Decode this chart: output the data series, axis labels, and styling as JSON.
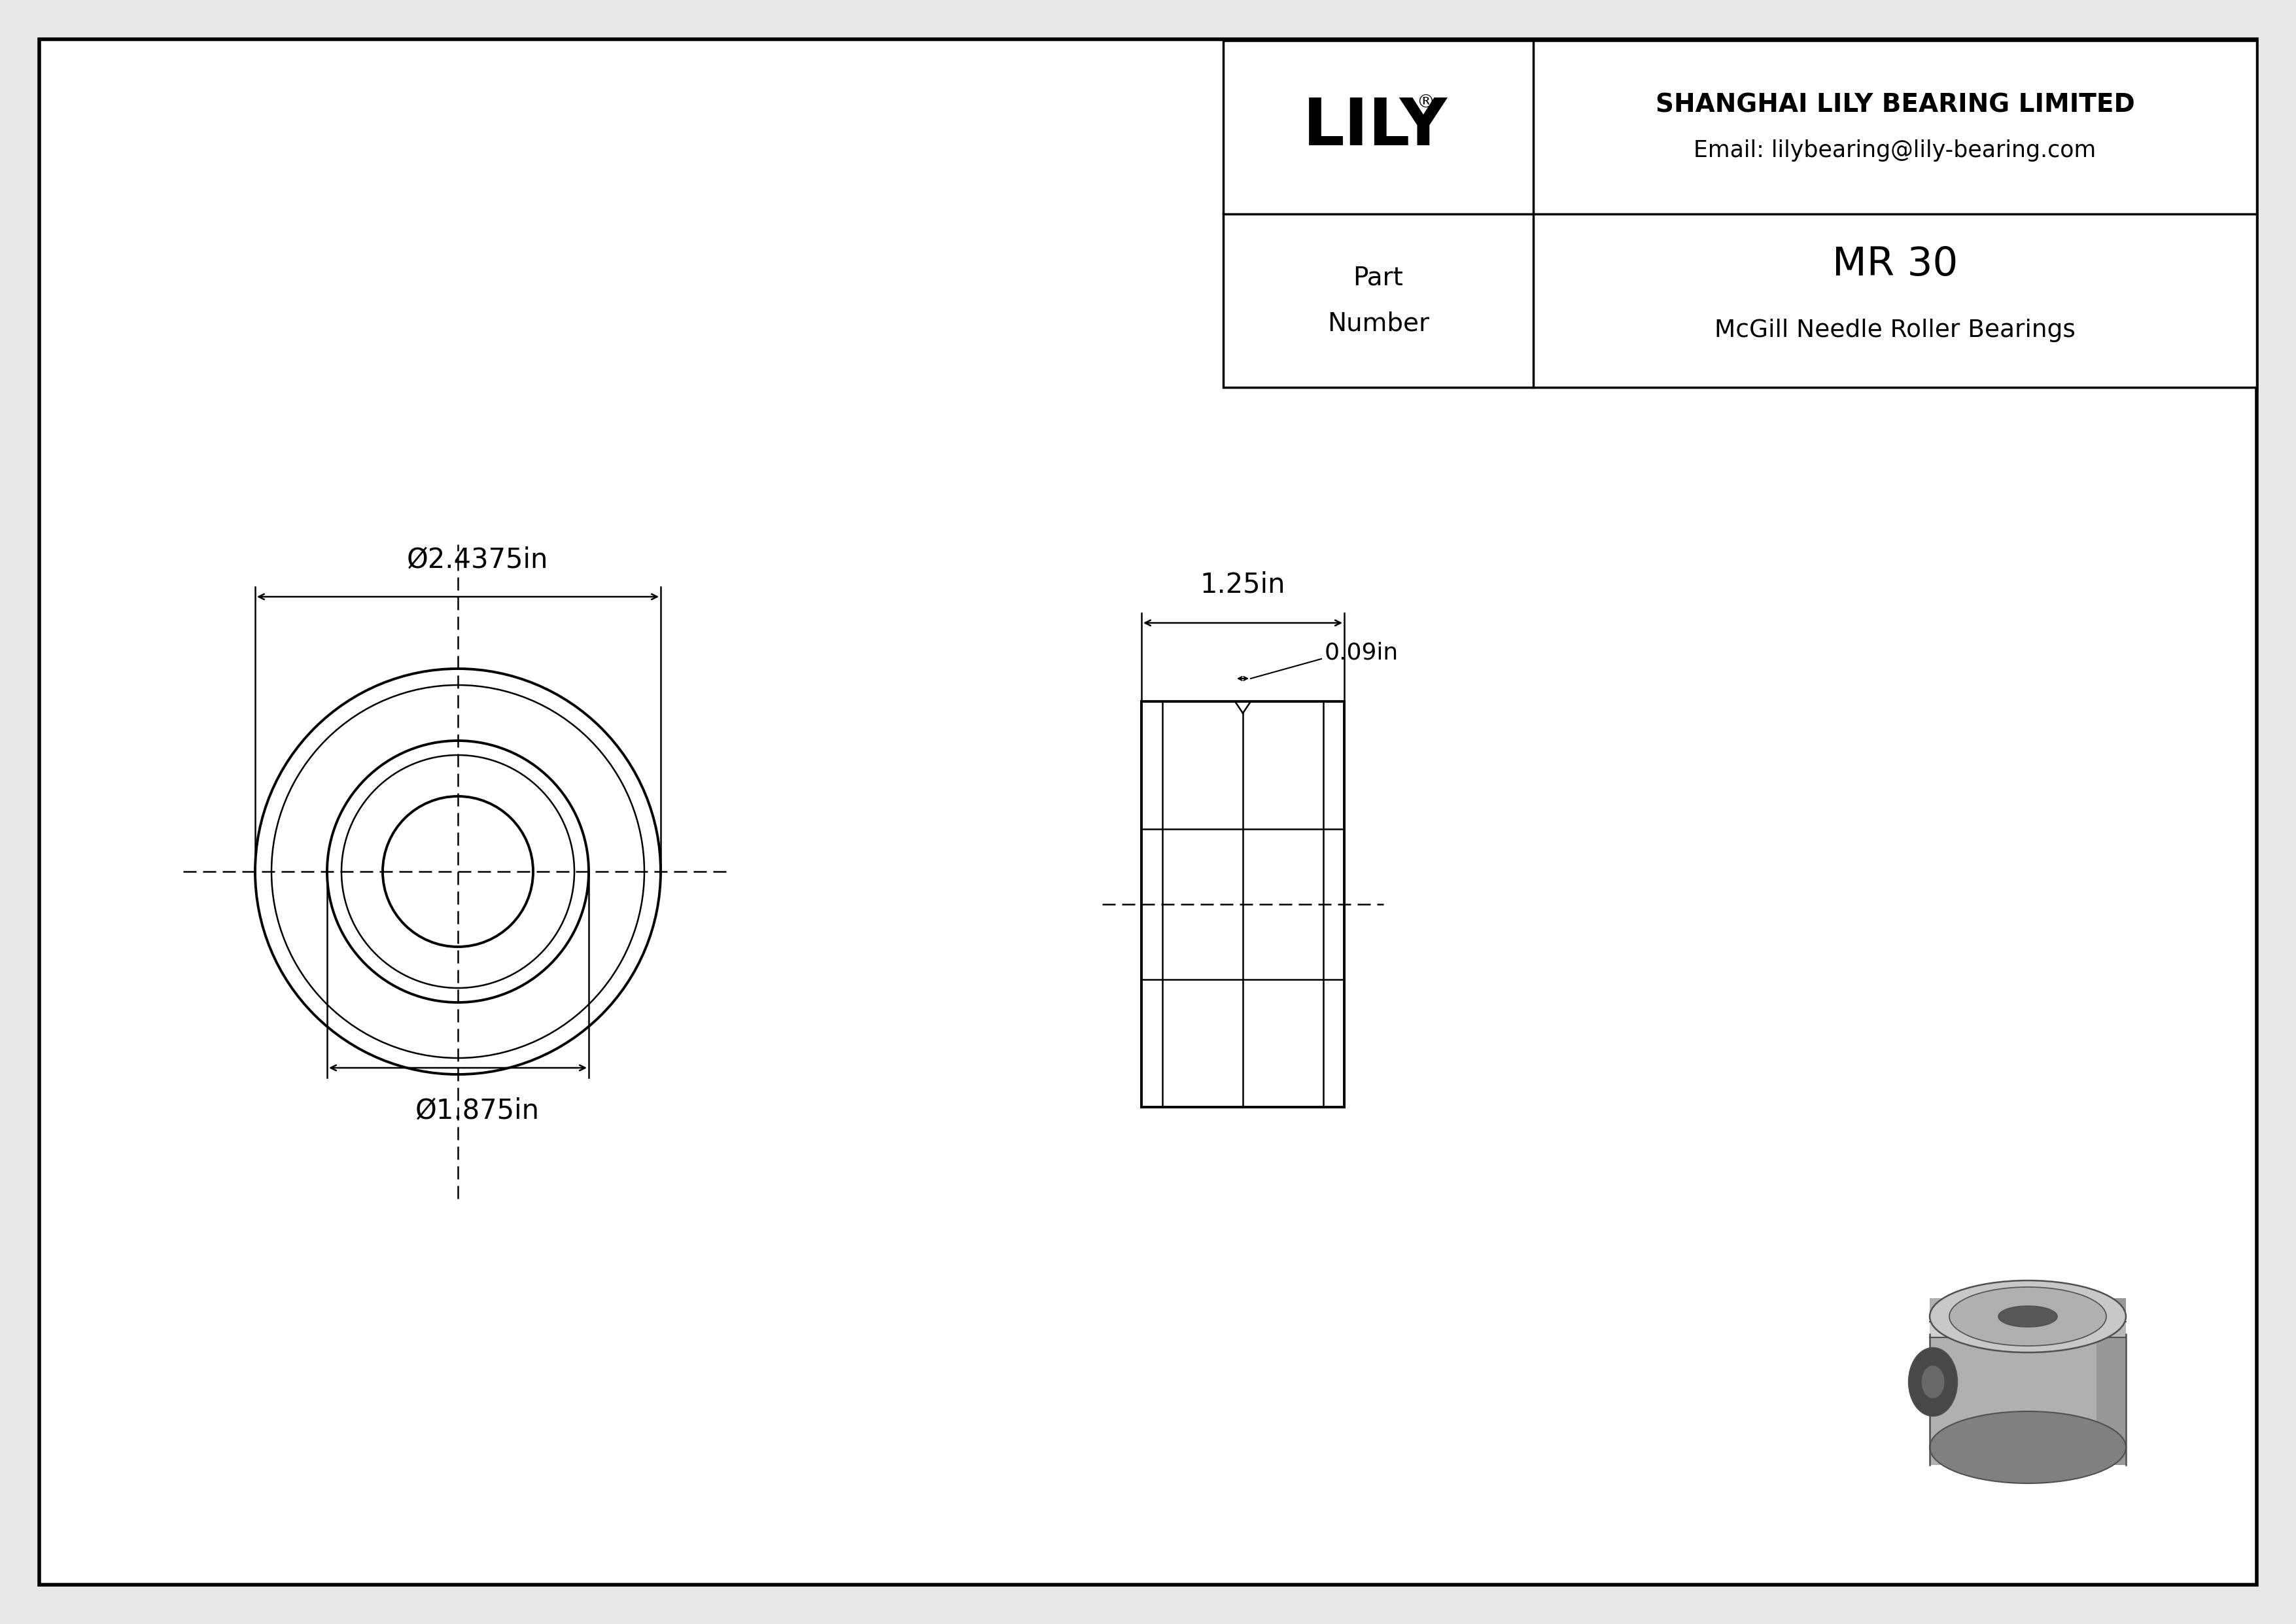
{
  "bg_color": "#e8e8e8",
  "drawing_bg": "#ffffff",
  "line_color": "#000000",
  "dim_color": "#000000",
  "title": "MR 30 McGill Needle Roller Bearings",
  "outer_diameter_label": "Ø2.4375in",
  "inner_diameter_label": "Ø1.875in",
  "width_label": "1.25in",
  "groove_label": "0.09in",
  "company_name": "SHANGHAI LILY BEARING LIMITED",
  "company_email": "Email: lilybearing@lily-bearing.com",
  "part_number_label_top": "Part",
  "part_number_label_bot": "Number",
  "part_number_value": "MR 30",
  "part_type": "McGill Needle Roller Bearings",
  "lily_logo": "LILY",
  "border_color": "#000000",
  "light_gray": "#c8c8c8",
  "medium_gray": "#a0a0a0",
  "dark_gray": "#606060"
}
